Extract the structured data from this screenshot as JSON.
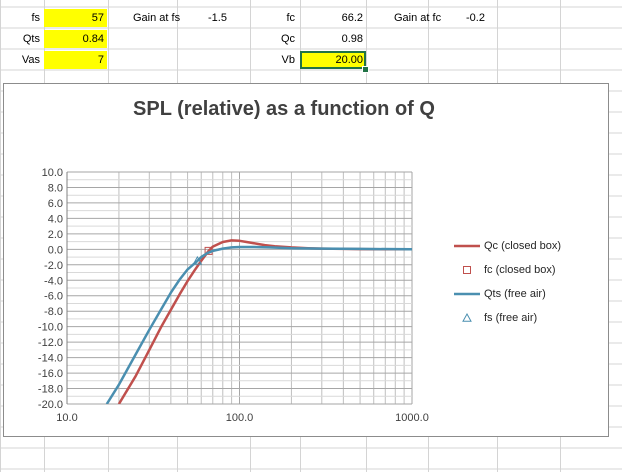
{
  "cells": {
    "fs_label": "fs",
    "fs_value": "57",
    "qts_label": "Qts",
    "qts_value": "0.84",
    "vas_label": "Vas",
    "vas_value": "7",
    "gain_fs_label": "Gain at fs",
    "gain_fs_value": "-1.5",
    "fc_label": "fc",
    "fc_value": "66.2",
    "qc_label": "Qc",
    "qc_value": "0.98",
    "vb_label": "Vb",
    "vb_value": "20.00",
    "gain_fc_label": "Gain at fc",
    "gain_fc_value": "-0.2"
  },
  "colors": {
    "input_fill": "#ffff00",
    "selection": "#217346",
    "series_qc": "#c0504d",
    "series_qts": "#4a8fb0"
  },
  "chart_data": {
    "type": "line",
    "title": "SPL (relative) as a function of Q",
    "xscale": "log",
    "xlim": [
      10,
      1000
    ],
    "ylim": [
      -20,
      10
    ],
    "x_tick_labels": [
      "10.0",
      "100.0",
      "1000.0"
    ],
    "y_tick_labels": [
      "10.0",
      "8.0",
      "6.0",
      "4.0",
      "2.0",
      "0.0",
      "-2.0",
      "-4.0",
      "-6.0",
      "-8.0",
      "-10.0",
      "-12.0",
      "-14.0",
      "-16.0",
      "-18.0",
      "-20.0"
    ],
    "grid": true,
    "legend_position": "right",
    "series": [
      {
        "name": "Qc  (closed box)",
        "kind": "line",
        "color": "#c0504d",
        "x": [
          20,
          25,
          30,
          35,
          40,
          45,
          50,
          55,
          60,
          66.2,
          70,
          80,
          90,
          100,
          110,
          120,
          140,
          160,
          200,
          250,
          300,
          400,
          500,
          700,
          1000
        ],
        "y": [
          -20,
          -16.4,
          -13.0,
          -10.1,
          -7.8,
          -5.8,
          -4.1,
          -2.7,
          -1.5,
          -0.2,
          0.35,
          0.95,
          1.15,
          1.1,
          0.95,
          0.8,
          0.55,
          0.4,
          0.25,
          0.15,
          0.1,
          0.05,
          0.03,
          0.01,
          0.0
        ]
      },
      {
        "name": "fc  (closed box)",
        "kind": "marker",
        "marker": "square",
        "color": "#c0504d",
        "x": [
          66.2
        ],
        "y": [
          -0.2
        ]
      },
      {
        "name": "Qts  (free air)",
        "kind": "line",
        "color": "#4a8fb0",
        "x": [
          17,
          20,
          25,
          30,
          35,
          40,
          45,
          50,
          57,
          60,
          65,
          70,
          80,
          90,
          100,
          120,
          150,
          200,
          300,
          500,
          1000
        ],
        "y": [
          -20,
          -17.5,
          -13.6,
          -10.4,
          -7.8,
          -5.6,
          -3.9,
          -2.6,
          -1.5,
          -1.0,
          -0.5,
          -0.2,
          0.1,
          0.25,
          0.3,
          0.3,
          0.25,
          0.15,
          0.1,
          0.05,
          0.0
        ]
      },
      {
        "name": "fs  (free air)",
        "kind": "marker",
        "marker": "triangle",
        "color": "#4a8fb0",
        "x": [
          57
        ],
        "y": [
          -1.5
        ]
      }
    ]
  }
}
